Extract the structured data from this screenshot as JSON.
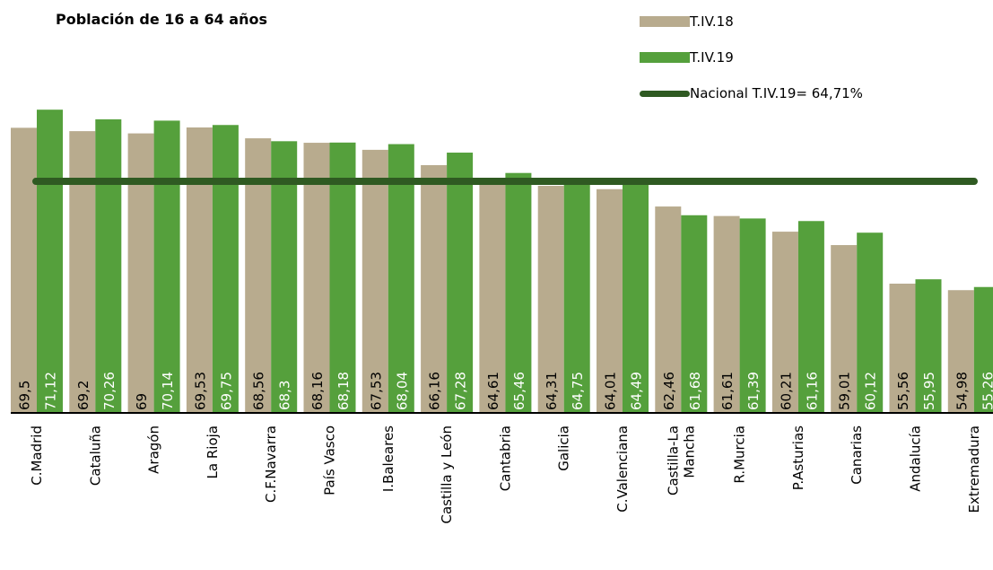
{
  "chart_data": {
    "type": "bar",
    "title": "Población de 16 a 64 años",
    "categories": [
      "C.Madrid",
      "Cataluña",
      "Aragón",
      "La Rioja",
      "C.F.Navarra",
      "País Vasco",
      "I.Baleares",
      "Castilla y León",
      "Cantabria",
      "Galicia",
      "C.Valenciana",
      "Castilla-La Mancha",
      "R.Murcia",
      "P.Asturias",
      "Canarias",
      "Andalucía",
      "Extremadura"
    ],
    "series": [
      {
        "name": "T.IV.18",
        "color": "#b8ab8e",
        "values": [
          69.5,
          69.2,
          69,
          69.53,
          68.56,
          68.16,
          67.53,
          66.16,
          64.61,
          64.31,
          64.01,
          62.46,
          61.61,
          60.21,
          59.01,
          55.56,
          54.98
        ],
        "labels": [
          "69,5",
          "69,2",
          "69",
          "69,53",
          "68,56",
          "68,16",
          "67,53",
          "66,16",
          "64,61",
          "64,31",
          "64,01",
          "62,46",
          "61,61",
          "60,21",
          "59,01",
          "55,56",
          "54,98"
        ]
      },
      {
        "name": "T.IV.19",
        "color": "#55a03c",
        "values": [
          71.12,
          70.26,
          70.14,
          69.75,
          68.3,
          68.18,
          68.04,
          67.28,
          65.46,
          64.75,
          64.49,
          61.68,
          61.39,
          61.16,
          60.12,
          55.95,
          55.26
        ],
        "labels": [
          "71,12",
          "70,26",
          "70,14",
          "69,75",
          "68,3",
          "68,18",
          "68,04",
          "67,28",
          "65,46",
          "64,75",
          "64,49",
          "61,68",
          "61,39",
          "61,16",
          "60,12",
          "55,95",
          "55,26"
        ]
      }
    ],
    "reference_line": {
      "name": "Nacional T.IV.19= 64,71%",
      "value": 64.71,
      "color": "#2f5a22"
    },
    "legend_position": "top-right",
    "ylim": [
      44,
      72.5
    ],
    "grid": false
  }
}
